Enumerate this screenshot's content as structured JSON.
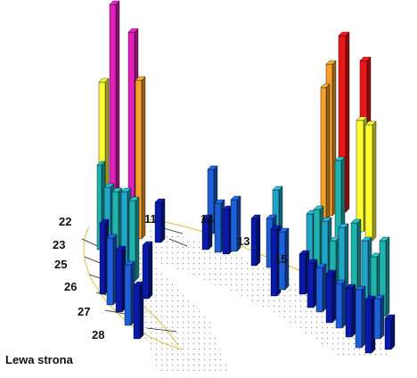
{
  "labels": {
    "side_caption": "Lewa strona",
    "tooth_22": "22",
    "tooth_23": "23",
    "tooth_25": "25",
    "tooth_26": "26",
    "tooth_27": "27",
    "tooth_28": "28",
    "tooth_13": "13",
    "tooth_15": "15",
    "tooth_11": "11",
    "tooth_14": "14"
  },
  "colors": {
    "background": "#ffffff",
    "arch_outline": "#d8c03a",
    "dots": "#9a9a9a",
    "bar_dark_blue": "#0a1aa8",
    "bar_blue": "#1c5fd6",
    "bar_cyan": "#21a6c8",
    "bar_teal": "#1fb3b0",
    "bar_yellow": "#ffff33",
    "bar_orange": "#f7a12c",
    "bar_magenta": "#e020b8",
    "bar_red": "#e81818"
  },
  "chart_data": {
    "type": "bar",
    "values_relative_height": {
      "left_group": [
        0.35,
        0.52,
        0.84,
        0.91,
        0.8,
        0.74,
        0.62,
        0.44,
        0.31,
        0.21
      ],
      "middle_group": [
        0.27,
        0.18,
        0.2,
        0.23,
        0.14
      ],
      "right_group": [
        0.66,
        0.77,
        0.82,
        0.64,
        0.6,
        0.45,
        0.34,
        0.26
      ]
    }
  }
}
